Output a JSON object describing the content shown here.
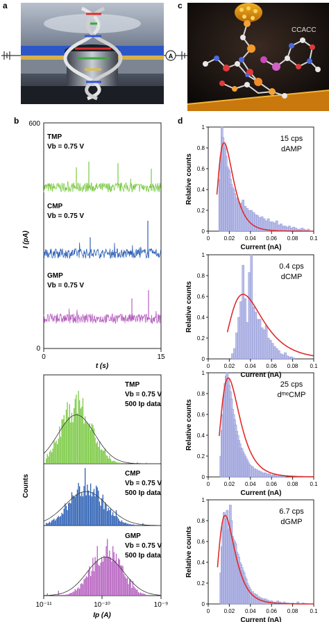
{
  "panel_labels": {
    "a": "a",
    "b": "b",
    "c": "c",
    "d": "d"
  },
  "panel_a": {
    "meter_symbol": "A"
  },
  "panel_c": {
    "sequence_label": "CCACC"
  },
  "panel_b": {
    "ylabel": "I (pA)",
    "xlabel": "t (s)",
    "y_top_tick": "600",
    "y_bottom_tick": "0",
    "x_ticks": [
      "0",
      "15"
    ],
    "traces": [
      {
        "name": "TMP",
        "condition": "Vb = 0.75 V",
        "color": "#7ac943"
      },
      {
        "name": "CMP",
        "condition": "Vb = 0.75 V",
        "color": "#2b5fb4"
      },
      {
        "name": "GMP",
        "condition": "Vb = 0.75 V",
        "color": "#b660c0"
      }
    ]
  },
  "panel_b_hist": {
    "ylabel": "Counts",
    "xlabel": "Ip (A)",
    "x_ticks": [
      "10⁻¹¹",
      "10⁻¹⁰",
      "10⁻⁹"
    ],
    "panels": [
      {
        "name": "TMP",
        "condition": "Vb = 0.75 V",
        "note": "500 Ip data",
        "color": "#7ac943"
      },
      {
        "name": "CMP",
        "condition": "Vb = 0.75 V",
        "note": "500 Ip data",
        "color": "#2b5fb4"
      },
      {
        "name": "GMP",
        "condition": "Vb = 0.75 V",
        "note": "500 Ip data",
        "color": "#b660c0"
      }
    ]
  },
  "chart_data": [
    {
      "type": "bar",
      "rate": "15 cps",
      "nucleotide": "dAMP",
      "xlabel": "Current (nA)",
      "ylabel": "Relative counts",
      "xlim": [
        0,
        0.1
      ],
      "ylim": [
        0,
        1
      ],
      "x_ticks": [
        "0",
        "0.02",
        "0.04",
        "0.06",
        "0.08",
        "0.1"
      ],
      "y_ticks": [
        "0",
        "0.2",
        "0.4",
        "0.6",
        "0.8",
        "1"
      ],
      "fit_peak": [
        0.015,
        0.85
      ],
      "bars": [
        [
          0.011,
          0.5
        ],
        [
          0.012,
          0.72
        ],
        [
          0.013,
          1.0
        ],
        [
          0.014,
          0.9
        ],
        [
          0.015,
          0.83
        ],
        [
          0.016,
          0.8
        ],
        [
          0.017,
          0.72
        ],
        [
          0.018,
          0.62
        ],
        [
          0.019,
          0.6
        ],
        [
          0.02,
          0.58
        ],
        [
          0.021,
          0.5
        ],
        [
          0.022,
          0.45
        ],
        [
          0.023,
          0.42
        ],
        [
          0.024,
          0.4
        ],
        [
          0.025,
          0.36
        ],
        [
          0.027,
          0.32
        ],
        [
          0.029,
          0.28
        ],
        [
          0.031,
          0.27
        ],
        [
          0.033,
          0.3
        ],
        [
          0.035,
          0.24
        ],
        [
          0.037,
          0.22
        ],
        [
          0.039,
          0.2
        ],
        [
          0.041,
          0.2
        ],
        [
          0.043,
          0.18
        ],
        [
          0.045,
          0.16
        ],
        [
          0.047,
          0.15
        ],
        [
          0.049,
          0.13
        ],
        [
          0.051,
          0.14
        ],
        [
          0.053,
          0.12
        ],
        [
          0.055,
          0.1
        ],
        [
          0.057,
          0.12
        ],
        [
          0.059,
          0.09
        ],
        [
          0.061,
          0.09
        ],
        [
          0.063,
          0.08
        ],
        [
          0.065,
          0.1
        ],
        [
          0.067,
          0.06
        ],
        [
          0.069,
          0.07
        ],
        [
          0.071,
          0.05
        ],
        [
          0.073,
          0.05
        ],
        [
          0.075,
          0.04
        ],
        [
          0.077,
          0.05
        ],
        [
          0.079,
          0.03
        ],
        [
          0.081,
          0.04
        ],
        [
          0.083,
          0.03
        ],
        [
          0.085,
          0.02
        ],
        [
          0.087,
          0.02
        ],
        [
          0.089,
          0.03
        ],
        [
          0.091,
          0.02
        ],
        [
          0.093,
          0.01
        ],
        [
          0.095,
          0.02
        ]
      ]
    },
    {
      "type": "bar",
      "rate": "0.4 cps",
      "nucleotide": "dCMP",
      "xlabel": "Current (nA)",
      "ylabel": "Relative counts",
      "xlim": [
        0,
        0.1
      ],
      "ylim": [
        0,
        1
      ],
      "x_ticks": [
        "0",
        "0.02",
        "0.04",
        "0.06",
        "0.08",
        "0.1"
      ],
      "y_ticks": [
        "0",
        "0.2",
        "0.4",
        "0.6",
        "0.8",
        "1"
      ],
      "fit_peak": [
        0.033,
        0.62
      ],
      "bars": [
        [
          0.023,
          0.05
        ],
        [
          0.025,
          0.1
        ],
        [
          0.027,
          0.25
        ],
        [
          0.029,
          0.4
        ],
        [
          0.031,
          0.55
        ],
        [
          0.033,
          0.9
        ],
        [
          0.035,
          0.58
        ],
        [
          0.037,
          0.35
        ],
        [
          0.039,
          0.83
        ],
        [
          0.041,
          1.0
        ],
        [
          0.043,
          0.5
        ],
        [
          0.045,
          0.45
        ],
        [
          0.047,
          0.38
        ],
        [
          0.049,
          0.38
        ],
        [
          0.051,
          0.3
        ],
        [
          0.053,
          0.28
        ],
        [
          0.055,
          0.32
        ],
        [
          0.057,
          0.2
        ],
        [
          0.059,
          0.18
        ],
        [
          0.061,
          0.15
        ],
        [
          0.063,
          0.12
        ],
        [
          0.065,
          0.1
        ],
        [
          0.067,
          0.08
        ],
        [
          0.069,
          0.05
        ],
        [
          0.071,
          0.04
        ],
        [
          0.073,
          0.06
        ],
        [
          0.075,
          0.03
        ],
        [
          0.077,
          0.02
        ],
        [
          0.079,
          0.02
        ],
        [
          0.081,
          0.01
        ]
      ]
    },
    {
      "type": "bar",
      "rate": "25 cps",
      "nucleotide": "dᵐᵉCMP",
      "xlabel": "Current (nA)",
      "ylabel": "Relative counts",
      "xlim": [
        0,
        0.1
      ],
      "ylim": [
        0,
        1
      ],
      "x_ticks": [
        "0",
        "0.02",
        "0.04",
        "0.06",
        "0.08",
        "0.1"
      ],
      "y_ticks": [
        "0",
        "0.2",
        "0.4",
        "0.6",
        "0.8",
        "1"
      ],
      "fit_peak": [
        0.019,
        0.95
      ],
      "bars": [
        [
          0.012,
          0.2
        ],
        [
          0.013,
          0.45
        ],
        [
          0.014,
          0.6
        ],
        [
          0.015,
          0.78
        ],
        [
          0.016,
          0.9
        ],
        [
          0.017,
          0.97
        ],
        [
          0.018,
          1.0
        ],
        [
          0.019,
          0.95
        ],
        [
          0.02,
          0.88
        ],
        [
          0.021,
          0.82
        ],
        [
          0.022,
          0.75
        ],
        [
          0.023,
          0.65
        ],
        [
          0.024,
          0.6
        ],
        [
          0.025,
          0.55
        ],
        [
          0.026,
          0.5
        ],
        [
          0.027,
          0.44
        ],
        [
          0.028,
          0.4
        ],
        [
          0.029,
          0.35
        ],
        [
          0.03,
          0.32
        ],
        [
          0.031,
          0.28
        ],
        [
          0.032,
          0.27
        ],
        [
          0.033,
          0.24
        ],
        [
          0.034,
          0.22
        ],
        [
          0.035,
          0.2
        ],
        [
          0.036,
          0.18
        ],
        [
          0.037,
          0.16
        ],
        [
          0.038,
          0.14
        ],
        [
          0.039,
          0.12
        ],
        [
          0.04,
          0.11
        ],
        [
          0.042,
          0.1
        ],
        [
          0.044,
          0.08
        ],
        [
          0.046,
          0.07
        ],
        [
          0.048,
          0.06
        ],
        [
          0.05,
          0.05
        ],
        [
          0.052,
          0.04
        ],
        [
          0.054,
          0.04
        ],
        [
          0.056,
          0.03
        ],
        [
          0.058,
          0.03
        ],
        [
          0.06,
          0.02
        ],
        [
          0.062,
          0.02
        ],
        [
          0.064,
          0.02
        ],
        [
          0.066,
          0.01
        ],
        [
          0.068,
          0.02
        ],
        [
          0.07,
          0.01
        ],
        [
          0.072,
          0.01
        ]
      ]
    },
    {
      "type": "bar",
      "rate": "6.7 cps",
      "nucleotide": "dGMP",
      "xlabel": "Current (nA)",
      "ylabel": "Relative counts",
      "xlim": [
        0,
        0.1
      ],
      "ylim": [
        0,
        1
      ],
      "x_ticks": [
        "0",
        "0.02",
        "0.04",
        "0.06",
        "0.08",
        "0.1"
      ],
      "y_ticks": [
        "0",
        "0.2",
        "0.4",
        "0.6",
        "0.8",
        "1"
      ],
      "fit_peak": [
        0.016,
        0.85
      ],
      "bars": [
        [
          0.012,
          0.3
        ],
        [
          0.013,
          0.55
        ],
        [
          0.014,
          0.75
        ],
        [
          0.015,
          0.88
        ],
        [
          0.016,
          0.7
        ],
        [
          0.017,
          0.82
        ],
        [
          0.018,
          0.9
        ],
        [
          0.019,
          0.7
        ],
        [
          0.02,
          0.72
        ],
        [
          0.021,
          0.95
        ],
        [
          0.022,
          0.8
        ],
        [
          0.023,
          0.65
        ],
        [
          0.024,
          0.62
        ],
        [
          0.025,
          0.6
        ],
        [
          0.026,
          0.58
        ],
        [
          0.027,
          0.5
        ],
        [
          0.028,
          0.48
        ],
        [
          0.029,
          0.45
        ],
        [
          0.03,
          0.4
        ],
        [
          0.031,
          0.38
        ],
        [
          0.032,
          0.35
        ],
        [
          0.033,
          0.32
        ],
        [
          0.034,
          0.3
        ],
        [
          0.035,
          0.26
        ],
        [
          0.036,
          0.24
        ],
        [
          0.037,
          0.2
        ],
        [
          0.038,
          0.18
        ],
        [
          0.039,
          0.16
        ],
        [
          0.04,
          0.14
        ],
        [
          0.042,
          0.12
        ],
        [
          0.044,
          0.1
        ],
        [
          0.046,
          0.09
        ],
        [
          0.048,
          0.07
        ],
        [
          0.05,
          0.06
        ],
        [
          0.052,
          0.05
        ],
        [
          0.054,
          0.05
        ],
        [
          0.056,
          0.04
        ],
        [
          0.058,
          0.03
        ],
        [
          0.06,
          0.03
        ],
        [
          0.062,
          0.02
        ],
        [
          0.064,
          0.02
        ],
        [
          0.066,
          0.03
        ],
        [
          0.068,
          0.02
        ],
        [
          0.07,
          0.01
        ],
        [
          0.072,
          0.02
        ],
        [
          0.074,
          0.01
        ],
        [
          0.076,
          0.01
        ],
        [
          0.08,
          0.01
        ],
        [
          0.085,
          0.02
        ],
        [
          0.09,
          0.01
        ]
      ]
    }
  ]
}
